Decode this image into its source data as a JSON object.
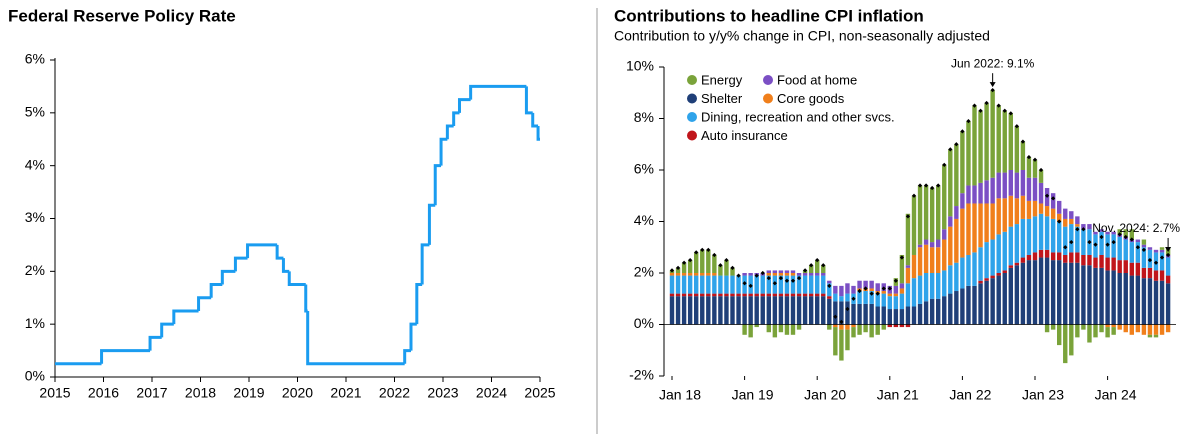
{
  "chart_data": [
    {
      "type": "step",
      "title": "Federal Reserve Policy Rate",
      "x": [
        2015.0,
        2015.96,
        2016.96,
        2017.2,
        2017.45,
        2017.96,
        2018.22,
        2018.45,
        2018.72,
        2018.97,
        2019.58,
        2019.71,
        2019.83,
        2020.17,
        2020.21,
        2022.21,
        2022.34,
        2022.46,
        2022.57,
        2022.72,
        2022.84,
        2022.96,
        2023.09,
        2023.22,
        2023.34,
        2023.57,
        2024.72,
        2024.85,
        2024.96,
        2025.0
      ],
      "values": [
        0.25,
        0.5,
        0.75,
        1.0,
        1.25,
        1.5,
        1.75,
        2.0,
        2.25,
        2.5,
        2.25,
        2.0,
        1.75,
        1.25,
        0.25,
        0.5,
        1.0,
        1.75,
        2.5,
        3.25,
        4.0,
        4.5,
        4.75,
        5.0,
        5.25,
        5.5,
        5.0,
        4.75,
        4.5,
        4.5
      ],
      "color": "#1a9cf0",
      "xlim": [
        2015,
        2025
      ],
      "xticks": [
        2015,
        2016,
        2017,
        2018,
        2019,
        2020,
        2021,
        2022,
        2023,
        2024,
        2025
      ],
      "ylim": [
        0,
        6
      ],
      "yticks": [
        {
          "value": 0,
          "label": "0%"
        },
        {
          "value": 1,
          "label": "1%"
        },
        {
          "value": 2,
          "label": "2%"
        },
        {
          "value": 3,
          "label": "3%"
        },
        {
          "value": 4,
          "label": "4%"
        },
        {
          "value": 5,
          "label": "5%"
        },
        {
          "value": 6,
          "label": "6%"
        }
      ]
    },
    {
      "type": "stacked_bar",
      "title": "Contributions to headline CPI inflation",
      "subtitle": "Contribution to y/y% change in CPI, non-seasonally adjusted",
      "categories": [
        "Jan 18",
        null,
        null,
        null,
        null,
        null,
        null,
        null,
        null,
        null,
        null,
        null,
        "Jan 19",
        null,
        null,
        null,
        null,
        null,
        null,
        null,
        null,
        null,
        null,
        null,
        "Jan 20",
        null,
        null,
        null,
        null,
        null,
        null,
        null,
        null,
        null,
        null,
        null,
        "Jan 21",
        null,
        null,
        null,
        null,
        null,
        null,
        null,
        null,
        null,
        null,
        null,
        "Jan 22",
        null,
        null,
        null,
        null,
        null,
        null,
        null,
        null,
        null,
        null,
        null,
        "Jan 23",
        null,
        null,
        null,
        null,
        null,
        null,
        null,
        null,
        null,
        null,
        null,
        "Jan 24",
        null,
        null,
        null,
        null,
        null,
        null,
        null,
        null,
        null,
        null
      ],
      "series": [
        {
          "name": "Shelter",
          "color": "#1f3f78",
          "values": [
            1.1,
            1.1,
            1.1,
            1.1,
            1.1,
            1.1,
            1.1,
            1.1,
            1.1,
            1.1,
            1.1,
            1.1,
            1.1,
            1.1,
            1.1,
            1.1,
            1.1,
            1.1,
            1.1,
            1.1,
            1.1,
            1.1,
            1.1,
            1.1,
            1.1,
            1.1,
            1.0,
            0.9,
            0.9,
            0.9,
            0.8,
            0.8,
            0.8,
            0.8,
            0.7,
            0.7,
            0.6,
            0.6,
            0.6,
            0.7,
            0.7,
            0.8,
            0.9,
            1.0,
            1.0,
            1.1,
            1.2,
            1.3,
            1.4,
            1.5,
            1.5,
            1.6,
            1.7,
            1.8,
            1.9,
            2.0,
            2.2,
            2.3,
            2.4,
            2.5,
            2.5,
            2.6,
            2.6,
            2.5,
            2.5,
            2.4,
            2.4,
            2.4,
            2.3,
            2.3,
            2.2,
            2.2,
            2.1,
            2.1,
            2.0,
            2.0,
            1.9,
            1.9,
            1.8,
            1.8,
            1.7,
            1.7,
            1.6
          ]
        },
        {
          "name": "Auto insurance",
          "color": "#c0151b",
          "values": [
            0.1,
            0.1,
            0.1,
            0.1,
            0.1,
            0.1,
            0.1,
            0.1,
            0.1,
            0.1,
            0.1,
            0.1,
            0.1,
            0.1,
            0.1,
            0.1,
            0.1,
            0.1,
            0.1,
            0.1,
            0.1,
            0.1,
            0.1,
            0.1,
            0.1,
            0.1,
            0.1,
            0.0,
            0.0,
            0.0,
            0.0,
            0.0,
            0.0,
            0.0,
            0.0,
            0.0,
            -0.1,
            -0.1,
            -0.1,
            -0.1,
            0.0,
            0.0,
            0.0,
            0.0,
            0.0,
            0.0,
            0.0,
            0.0,
            0.0,
            0.0,
            0.0,
            0.1,
            0.1,
            0.1,
            0.1,
            0.1,
            0.1,
            0.1,
            0.2,
            0.2,
            0.3,
            0.3,
            0.3,
            0.3,
            0.3,
            0.3,
            0.4,
            0.4,
            0.4,
            0.4,
            0.4,
            0.5,
            0.5,
            0.5,
            0.5,
            0.5,
            0.5,
            0.5,
            0.4,
            0.4,
            0.4,
            0.4,
            0.3
          ]
        },
        {
          "name": "Dining, recreation and other svcs.",
          "color": "#2fa3ea",
          "values": [
            0.7,
            0.7,
            0.7,
            0.7,
            0.7,
            0.7,
            0.7,
            0.7,
            0.7,
            0.7,
            0.7,
            0.7,
            0.7,
            0.7,
            0.7,
            0.7,
            0.7,
            0.7,
            0.7,
            0.7,
            0.7,
            0.7,
            0.7,
            0.7,
            0.7,
            0.7,
            0.5,
            0.3,
            0.2,
            0.3,
            0.4,
            0.5,
            0.5,
            0.5,
            0.5,
            0.5,
            0.5,
            0.5,
            0.6,
            0.9,
            1.1,
            1.1,
            1.1,
            1.0,
            1.0,
            1.0,
            1.1,
            1.1,
            1.2,
            1.2,
            1.3,
            1.3,
            1.4,
            1.4,
            1.5,
            1.5,
            1.5,
            1.5,
            1.5,
            1.4,
            1.4,
            1.4,
            1.3,
            1.3,
            1.2,
            1.1,
            1.1,
            1.0,
            1.0,
            1.0,
            0.9,
            0.9,
            0.9,
            0.9,
            0.9,
            0.8,
            0.8,
            0.8,
            0.8,
            0.7,
            0.7,
            0.7,
            0.7
          ]
        },
        {
          "name": "Core goods",
          "color": "#f07f1b",
          "values": [
            0.1,
            0.1,
            0.1,
            0.1,
            0.1,
            0.1,
            0.1,
            0.1,
            0.0,
            0.0,
            0.0,
            0.0,
            0.0,
            0.0,
            0.0,
            0.0,
            0.1,
            0.1,
            0.1,
            0.1,
            0.1,
            0.0,
            0.0,
            0.0,
            0.0,
            0.0,
            0.0,
            -0.1,
            -0.2,
            -0.2,
            -0.1,
            0.1,
            0.1,
            0.1,
            0.1,
            0.1,
            0.1,
            0.1,
            0.2,
            0.6,
            0.9,
            1.1,
            1.1,
            1.0,
            1.0,
            1.2,
            1.5,
            1.7,
            1.9,
            2.0,
            1.9,
            1.7,
            1.5,
            1.4,
            1.4,
            1.3,
            1.2,
            1.0,
            0.9,
            0.7,
            0.6,
            0.4,
            0.4,
            0.4,
            0.3,
            0.3,
            0.2,
            0.1,
            0.0,
            0.0,
            0.0,
            0.0,
            -0.1,
            -0.1,
            -0.2,
            -0.3,
            -0.4,
            -0.3,
            -0.4,
            -0.4,
            -0.4,
            -0.4,
            -0.3
          ]
        },
        {
          "name": "Food at home",
          "color": "#7b4fc4",
          "values": [
            0.0,
            0.0,
            0.0,
            0.0,
            0.0,
            0.0,
            0.0,
            0.0,
            0.0,
            0.0,
            0.0,
            0.0,
            0.1,
            0.1,
            0.1,
            0.1,
            0.1,
            0.1,
            0.1,
            0.1,
            0.1,
            0.1,
            0.1,
            0.1,
            0.1,
            0.1,
            0.1,
            0.3,
            0.4,
            0.4,
            0.3,
            0.3,
            0.3,
            0.3,
            0.3,
            0.3,
            0.3,
            0.3,
            0.2,
            0.1,
            0.0,
            0.1,
            0.2,
            0.2,
            0.3,
            0.4,
            0.4,
            0.5,
            0.6,
            0.7,
            0.7,
            0.8,
            0.9,
            1.0,
            1.0,
            1.0,
            1.0,
            1.0,
            1.0,
            0.9,
            0.9,
            0.8,
            0.7,
            0.6,
            0.5,
            0.4,
            0.3,
            0.3,
            0.2,
            0.2,
            0.1,
            0.1,
            0.1,
            0.1,
            0.1,
            0.1,
            0.1,
            0.1,
            0.1,
            0.1,
            0.1,
            0.1,
            0.1
          ]
        },
        {
          "name": "Energy",
          "color": "#7aa33a",
          "values": [
            0.1,
            0.2,
            0.4,
            0.5,
            0.8,
            0.9,
            0.9,
            0.7,
            0.4,
            0.6,
            0.3,
            0.0,
            -0.4,
            -0.5,
            -0.1,
            0.0,
            -0.3,
            -0.5,
            -0.3,
            -0.4,
            -0.4,
            -0.2,
            0.1,
            0.3,
            0.5,
            0.3,
            -0.2,
            -1.1,
            -1.2,
            -0.8,
            -0.4,
            -0.4,
            -0.3,
            -0.5,
            -0.4,
            -0.2,
            0.0,
            0.3,
            1.1,
            2.0,
            2.3,
            2.3,
            2.1,
            2.1,
            2.1,
            2.5,
            2.6,
            2.4,
            2.4,
            2.5,
            3.1,
            2.8,
            3.0,
            3.4,
            2.6,
            2.4,
            2.2,
            1.8,
            1.1,
            0.8,
            0.7,
            0.5,
            -0.3,
            -0.2,
            -0.8,
            -1.5,
            -1.2,
            -0.5,
            -0.2,
            -0.7,
            -0.5,
            -0.3,
            -0.4,
            -0.3,
            0.2,
            0.3,
            0.4,
            0.0,
            0.2,
            -0.1,
            -0.1,
            0.1,
            0.3
          ]
        }
      ],
      "headline_values": [
        2.1,
        2.2,
        2.4,
        2.5,
        2.8,
        2.9,
        2.9,
        2.7,
        2.3,
        2.5,
        2.2,
        1.9,
        1.6,
        1.5,
        1.9,
        2.0,
        1.8,
        1.6,
        1.8,
        1.7,
        1.7,
        1.8,
        2.1,
        2.3,
        2.5,
        2.3,
        1.5,
        0.3,
        0.1,
        0.6,
        1.0,
        1.3,
        1.4,
        1.2,
        1.2,
        1.4,
        1.4,
        1.7,
        2.6,
        4.2,
        5.0,
        5.4,
        5.4,
        5.3,
        5.4,
        6.2,
        6.8,
        7.0,
        7.5,
        7.9,
        8.5,
        8.3,
        8.6,
        9.1,
        8.5,
        8.3,
        8.2,
        7.7,
        7.1,
        6.5,
        6.4,
        6.0,
        5.0,
        4.9,
        4.0,
        3.0,
        3.2,
        3.7,
        3.7,
        3.2,
        3.1,
        3.4,
        3.1,
        3.2,
        3.5,
        3.4,
        3.3,
        3.0,
        2.9,
        2.5,
        2.4,
        2.6,
        2.7
      ],
      "annotations": [
        "Jun 2022: 9.1%",
        "Nov. 2024: 2.7%"
      ],
      "ylim": [
        -2,
        10
      ],
      "yticks": [
        {
          "value": -2,
          "label": "-2%"
        },
        {
          "value": 0,
          "label": "0%"
        },
        {
          "value": 2,
          "label": "2%"
        },
        {
          "value": 4,
          "label": "4%"
        },
        {
          "value": 6,
          "label": "6%"
        },
        {
          "value": 8,
          "label": "8%"
        },
        {
          "value": 10,
          "label": "10%"
        }
      ],
      "legend": "upper left"
    }
  ]
}
